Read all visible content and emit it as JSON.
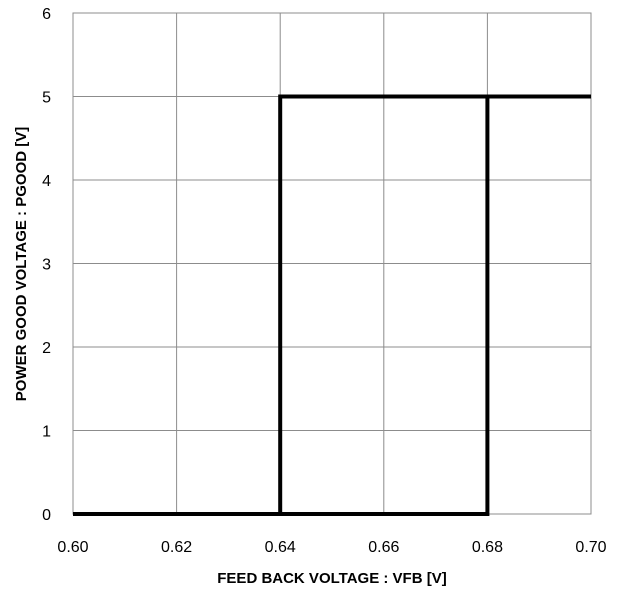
{
  "chart_data": {
    "type": "line",
    "title": "",
    "xlabel": "FEED BACK VOLTAGE : VFB [V]",
    "ylabel": "POWER GOOD VOLTAGE : PGOOD [V]",
    "xlim": [
      0.6,
      0.7
    ],
    "ylim": [
      0,
      6
    ],
    "x_ticks": [
      "0.60",
      "0.62",
      "0.64",
      "0.66",
      "0.68",
      "0.70"
    ],
    "y_ticks": [
      "0",
      "1",
      "2",
      "3",
      "4",
      "5",
      "6"
    ],
    "grid": true,
    "legend": "none",
    "line_color": "#000000",
    "grid_color": "#8c8c8c",
    "series": [
      {
        "points": [
          [
            0.6,
            0
          ],
          [
            0.64,
            0
          ],
          [
            0.64,
            5
          ],
          [
            0.68,
            5
          ],
          [
            0.68,
            0
          ],
          [
            0.64,
            0
          ]
        ]
      },
      {
        "points": [
          [
            0.68,
            5
          ],
          [
            0.7,
            5
          ]
        ]
      }
    ]
  }
}
